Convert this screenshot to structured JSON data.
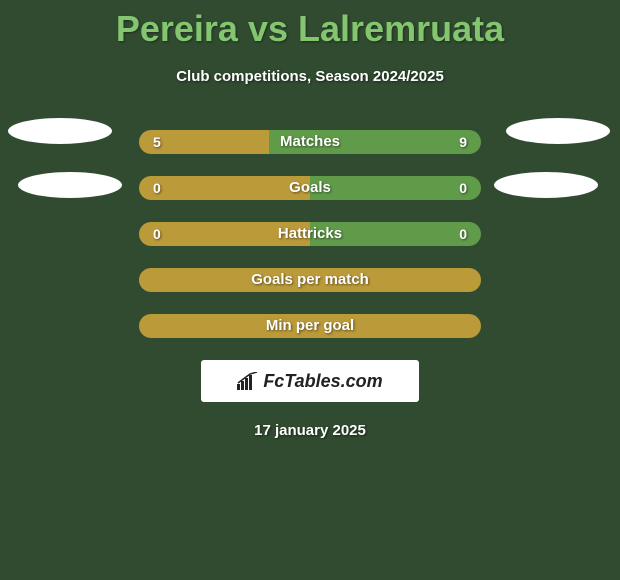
{
  "colors": {
    "panel_bg": "#304b30",
    "title": "#84c56f",
    "subtitle": "#ffffff",
    "stat_label": "#ffffff",
    "stat_value": "#ffffff",
    "bar_left": "#bb9a3a",
    "bar_right": "#609b4a",
    "bar_full": "#bb9a3a",
    "ellipse": "#ffffff",
    "logo_bg": "#ffffff",
    "logo_text": "#222222",
    "date_text": "#ffffff"
  },
  "title": {
    "left": "Pereira",
    "vs": "vs",
    "right": "Lalremruata"
  },
  "subtitle": "Club competitions, Season 2024/2025",
  "stats": [
    {
      "label": "Matches",
      "left_val": "5",
      "right_val": "9",
      "left_pct": 38,
      "right_pct": 62,
      "mode": "split"
    },
    {
      "label": "Goals",
      "left_val": "0",
      "right_val": "0",
      "left_pct": 50,
      "right_pct": 50,
      "mode": "split"
    },
    {
      "label": "Hattricks",
      "left_val": "0",
      "right_val": "0",
      "left_pct": 50,
      "right_pct": 50,
      "mode": "split"
    },
    {
      "label": "Goals per match",
      "left_val": "",
      "right_val": "",
      "mode": "full"
    },
    {
      "label": "Min per goal",
      "left_val": "",
      "right_val": "",
      "mode": "full"
    }
  ],
  "logo_text": "FcTables.com",
  "date": "17 january 2025"
}
